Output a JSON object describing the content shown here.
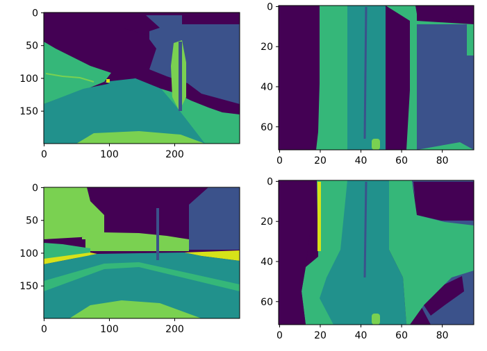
{
  "palette": {
    "dark_purple": "#440154",
    "indigo": "#3b528b",
    "teal": "#21918c",
    "green": "#35b779",
    "light_green": "#7ad151",
    "yellow": "#d7e219"
  },
  "chart_data": [
    {
      "type": "heatmap",
      "position": "top-left",
      "x_range": [
        0,
        299
      ],
      "y_range": [
        0,
        199
      ],
      "y_inverted": true,
      "x_ticks": [
        0,
        100,
        200
      ],
      "y_ticks": [
        0,
        50,
        100,
        150
      ],
      "grid": false
    },
    {
      "type": "heatmap",
      "position": "top-right",
      "x_range": [
        0,
        95
      ],
      "y_range": [
        0,
        71
      ],
      "y_inverted": true,
      "x_ticks": [
        0,
        20,
        40,
        60,
        80
      ],
      "y_ticks": [
        0,
        20,
        40,
        60
      ],
      "grid": false
    },
    {
      "type": "heatmap",
      "position": "bottom-left",
      "x_range": [
        0,
        299
      ],
      "y_range": [
        0,
        199
      ],
      "y_inverted": true,
      "x_ticks": [
        0,
        100,
        200
      ],
      "y_ticks": [
        0,
        50,
        100,
        150
      ],
      "grid": false
    },
    {
      "type": "heatmap",
      "position": "bottom-right",
      "x_range": [
        0,
        95
      ],
      "y_range": [
        0,
        71
      ],
      "y_inverted": true,
      "x_ticks": [
        0,
        20,
        40,
        60,
        80
      ],
      "y_ticks": [
        0,
        20,
        40,
        60
      ],
      "grid": false
    }
  ]
}
